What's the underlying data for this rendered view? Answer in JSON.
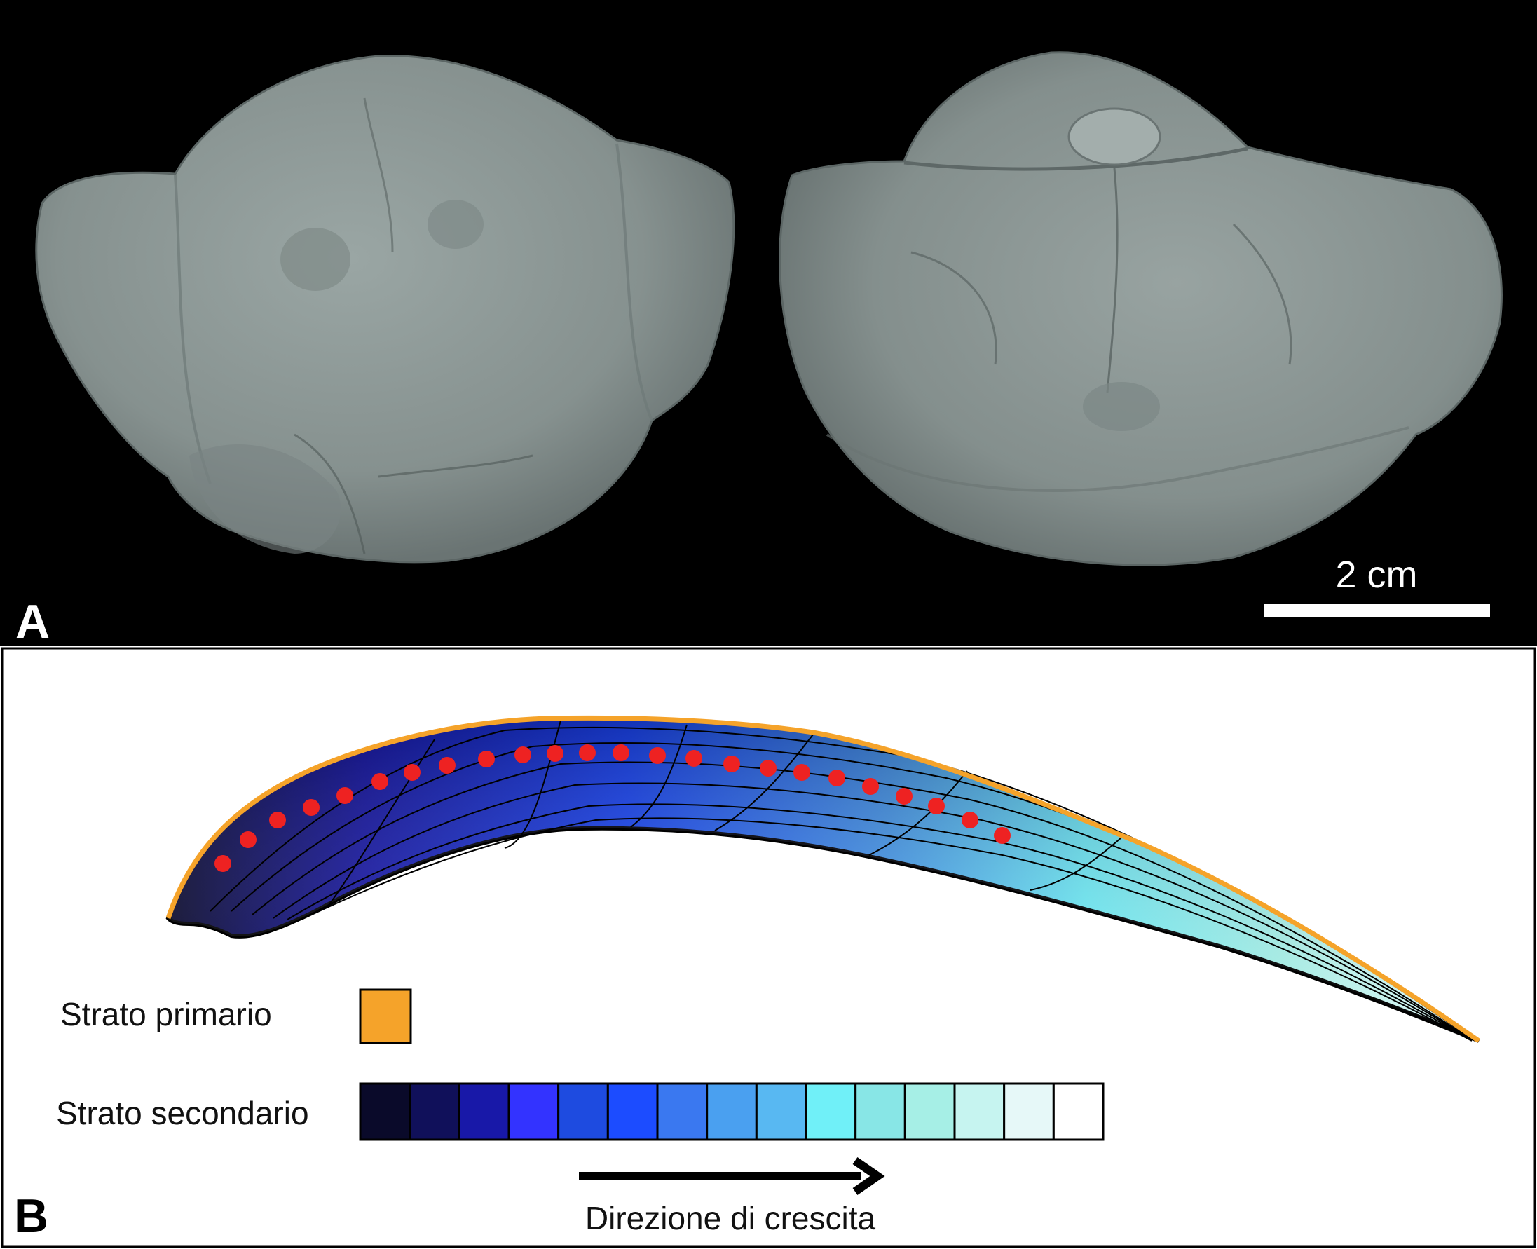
{
  "panel_a": {
    "letter": "A",
    "scale_label": "2 cm",
    "background_color": "#000000",
    "fossil_color": "#8f9a98"
  },
  "panel_b": {
    "letter": "B",
    "primary_layer_label": "Strato primario",
    "primary_layer_color": "#f5a32a",
    "secondary_layer_label": "Strato secondario",
    "secondary_layer_colors": [
      "#0a0a2a",
      "#10105a",
      "#1818a8",
      "#3333ff",
      "#1e4be0",
      "#1c4cff",
      "#3a78f0",
      "#4aa0f0",
      "#58b8f2",
      "#70f0f8",
      "#88e6e6",
      "#a6efe6",
      "#c6f4f0",
      "#e6f8f8",
      "#ffffff"
    ],
    "growth_direction_label": "Direzione di crescita",
    "dot_color": "#ee2222"
  }
}
